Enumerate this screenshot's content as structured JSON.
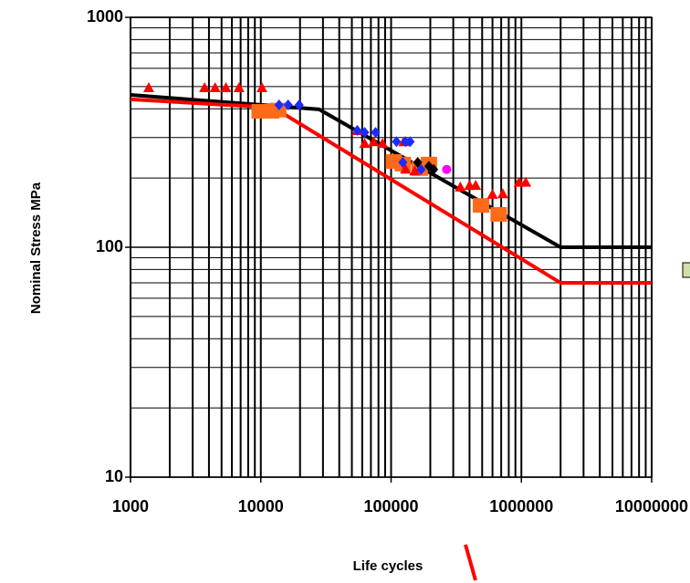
{
  "chart_data": {
    "type": "scatter",
    "xlabel": "Life cycles",
    "ylabel": "Nominal Stress MPa",
    "xscale": "log",
    "yscale": "log",
    "grid": true,
    "minor_grid": true,
    "xlim": [
      1000,
      10000000
    ],
    "ylim": [
      10,
      1000
    ],
    "xticks": [
      1000,
      10000,
      100000,
      1000000,
      10000000
    ],
    "yticks": [
      10,
      100,
      1000
    ],
    "series": [
      {
        "mode": "line",
        "color": "#000000",
        "x": [
          1000,
          28000,
          2000000,
          10000000
        ],
        "values": [
          460,
          398,
          100,
          100
        ]
      },
      {
        "mode": "line",
        "color": "#ff0000",
        "x": [
          1000,
          12500,
          2000000,
          10000000
        ],
        "values": [
          440,
          405,
          70,
          70
        ]
      },
      {
        "mode": "marker",
        "marker": "square",
        "color": "#ff6a1a",
        "x": [
          9800,
          12000,
          13600,
          105000,
          123000,
          166000,
          195000,
          490000,
          670000
        ],
        "values": [
          390,
          390,
          395,
          236,
          230,
          220,
          230,
          152,
          139
        ]
      },
      {
        "mode": "marker",
        "marker": "triangle",
        "color": "#ff0000",
        "x": [
          1380,
          3700,
          4460,
          5400,
          6800,
          10200,
          55000,
          62700,
          73500,
          86000,
          125000,
          129000,
          152000,
          340000,
          400000,
          446000,
          600000,
          720000,
          960000,
          1080000
        ],
        "values": [
          495,
          495,
          495,
          495,
          495,
          495,
          322,
          283,
          288,
          283,
          288,
          219,
          215,
          183,
          186,
          186,
          170,
          171,
          192,
          192
        ]
      },
      {
        "mode": "marker",
        "marker": "diamond",
        "color": "#1a2cff",
        "x": [
          13800,
          16200,
          19700,
          55000,
          62700,
          76000,
          110000,
          129000,
          140000,
          123000,
          170000
        ],
        "values": [
          416,
          416,
          416,
          322,
          316,
          316,
          288,
          288,
          288,
          234,
          218
        ]
      },
      {
        "mode": "marker",
        "marker": "diamond",
        "color": "#000000",
        "x": [
          160000,
          195000,
          212000
        ],
        "values": [
          234,
          225,
          218
        ]
      },
      {
        "mode": "marker",
        "marker": "circle",
        "color": "#ff00ff",
        "x": [
          267000
        ],
        "values": [
          218
        ]
      }
    ]
  }
}
